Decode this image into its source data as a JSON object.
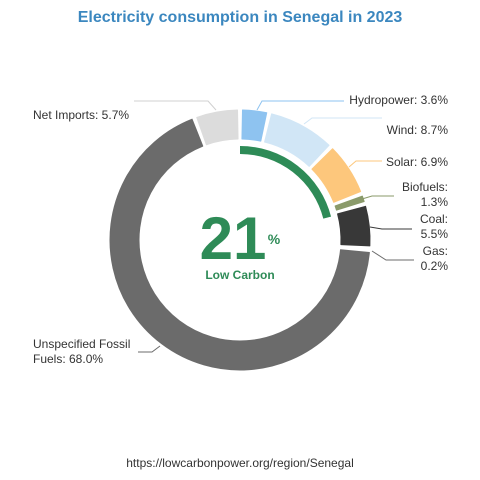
{
  "chart_data": {
    "type": "pie",
    "title": "Electricity consumption in Senegal in 2023",
    "start_category": "Hydropower",
    "series": [
      {
        "name": "Hydropower",
        "label": "Hydropower: 3.6%",
        "value": 3.6,
        "color": "#8ec3f0"
      },
      {
        "name": "Wind",
        "label": "Wind: 8.7%",
        "value": 8.7,
        "color": "#d1e6f6"
      },
      {
        "name": "Solar",
        "label": "Solar: 6.9%",
        "value": 6.9,
        "color": "#fdc77c"
      },
      {
        "name": "Biofuels",
        "label": "Biofuels: 1.3%",
        "value": 1.3,
        "color": "#8a9a6a"
      },
      {
        "name": "Coal",
        "label": "Coal: 5.5%",
        "value": 5.5,
        "color": "#383838"
      },
      {
        "name": "Gas",
        "label": "Gas: 0.2%",
        "value": 0.2,
        "color": "#6b6b6b"
      },
      {
        "name": "Unspecified Fossil Fuels",
        "label": "Unspecified Fossil Fuels: 68.0%",
        "value": 68.0,
        "color": "#6b6b6b"
      },
      {
        "name": "Net Imports",
        "label": "Net Imports: 5.7%",
        "value": 5.7,
        "color": "#dcdcdc"
      }
    ],
    "low_carbon": {
      "value": 21,
      "unit": "%",
      "label": "Low Carbon",
      "color": "#2e8b57"
    }
  },
  "footer": {
    "url": "https://lowcarbonpower.org/region/Senegal"
  }
}
